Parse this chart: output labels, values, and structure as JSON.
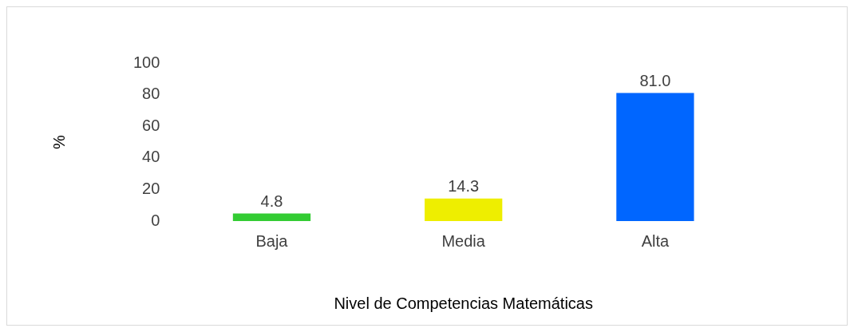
{
  "chart_data": {
    "type": "bar",
    "xlabel": "Nivel de Competencias Matemáticas",
    "ylabel": "%",
    "categories": [
      "Baja",
      "Media",
      "Alta"
    ],
    "values": [
      4.8,
      14.3,
      81.0
    ],
    "colors": [
      "#33cc33",
      "#eeee00",
      "#0066ff"
    ],
    "value_labels": [
      "4.8",
      "14.3",
      "81.0"
    ],
    "ylim": [
      0,
      100
    ],
    "yticks": [
      0,
      20,
      40,
      60,
      80,
      100
    ],
    "grid": false,
    "legend": false
  }
}
